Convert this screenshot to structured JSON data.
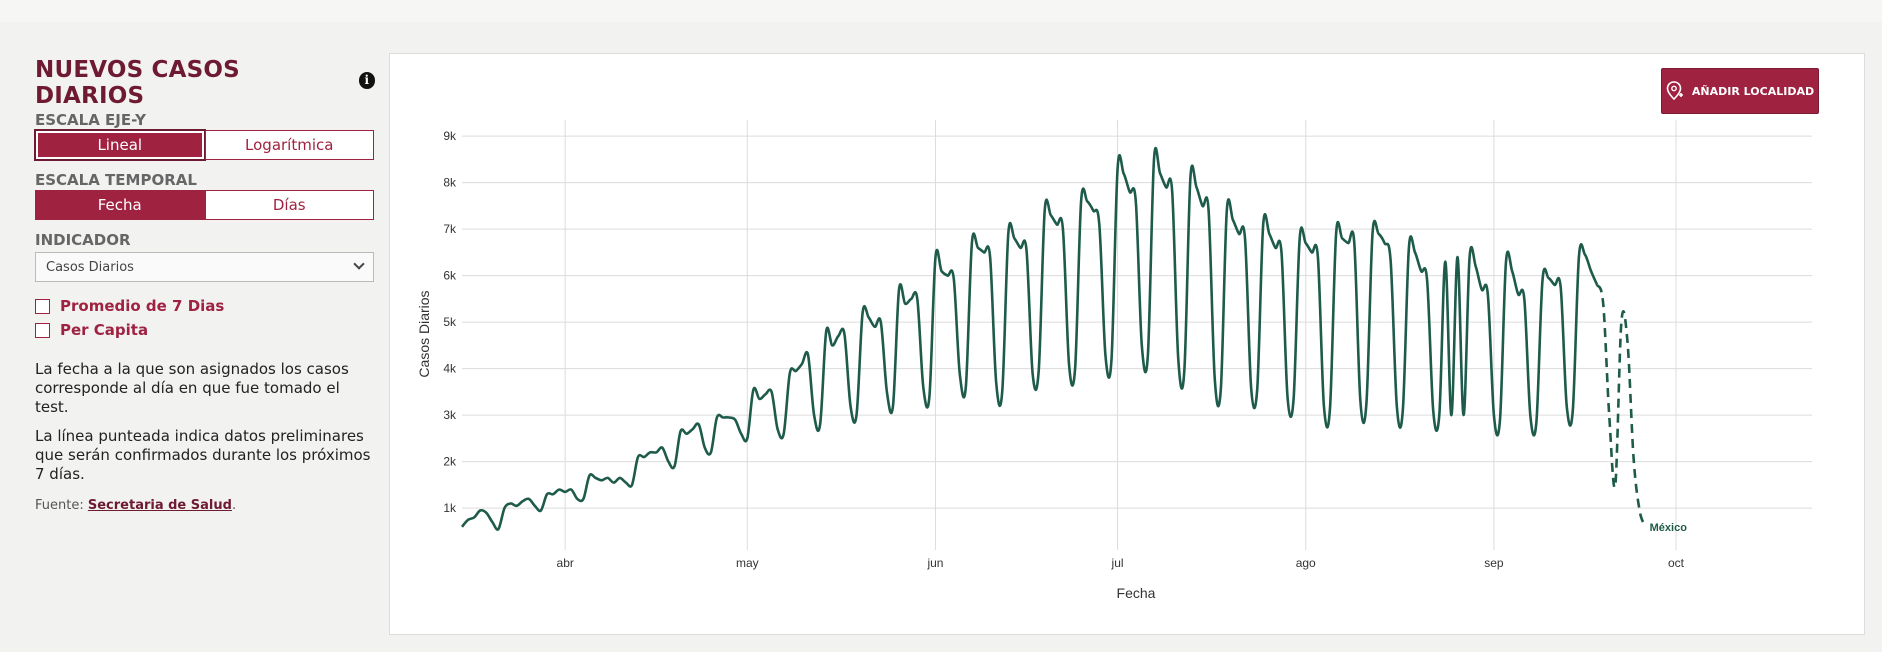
{
  "side": {
    "title": "NUEVOS CASOS DIARIOS",
    "info_icon": "i",
    "yscale_label": "ESCALA EJE-Y",
    "yscale_options": [
      "Lineal",
      "Logarítmica"
    ],
    "yscale_selected": "Lineal",
    "timescale_label": "ESCALA TEMPORAL",
    "timescale_options": [
      "Fecha",
      "Días"
    ],
    "timescale_selected": "Fecha",
    "indicator_label": "INDICADOR",
    "indicator_value": "Casos Diarios",
    "check_avg": "Promedio de 7 Dias",
    "check_capita": "Per Capita",
    "note1": "La fecha a la que son asignados los casos corresponde al día en que fue tomado el test.",
    "note2": "La línea punteada indica datos preliminares que serán confirmados durante los próximos 7 días.",
    "source_prefix": "Fuente: ",
    "source_link": "Secretaria de Salud",
    "source_suffix": "."
  },
  "add_button": {
    "label": "AÑADIR LOCALIDAD",
    "icon": "location-pin-plus-icon"
  },
  "colors": {
    "accent": "#9f2241",
    "title": "#6e1a33",
    "line": "#1e5b4a",
    "grid": "#dcdcdc"
  },
  "chart_data": {
    "type": "line",
    "xlabel": "Fecha",
    "ylabel": "Casos Diarios",
    "x_start": "2020-03-15",
    "x_ticks": [
      "abr",
      "may",
      "jun",
      "jul",
      "ago",
      "sep",
      "oct"
    ],
    "x_tick_dates": [
      "2020-04-01",
      "2020-05-01",
      "2020-06-01",
      "2020-07-01",
      "2020-08-01",
      "2020-09-01",
      "2020-10-01"
    ],
    "y_ticks": [
      1000,
      2000,
      3000,
      4000,
      5000,
      6000,
      7000,
      8000,
      9000
    ],
    "y_tick_labels": [
      "1k",
      "2k",
      "3k",
      "4k",
      "5k",
      "6k",
      "7k",
      "8k",
      "9k"
    ],
    "ylim": [
      0,
      9000
    ],
    "grid": true,
    "series": [
      {
        "name": "México",
        "start_date": "2020-03-15",
        "values": [
          600,
          750,
          800,
          950,
          900,
          700,
          550,
          1000,
          1100,
          1050,
          1150,
          1200,
          1050,
          950,
          1300,
          1300,
          1400,
          1350,
          1400,
          1200,
          1200,
          1700,
          1650,
          1600,
          1650,
          1550,
          1650,
          1550,
          1500,
          2100,
          2100,
          2200,
          2200,
          2300,
          2000,
          1900,
          2650,
          2600,
          2700,
          2800,
          2300,
          2200,
          2950,
          2950,
          2950,
          2900,
          2600,
          2500,
          3550,
          3350,
          3450,
          3500,
          2700,
          2600,
          3900,
          3950,
          4100,
          4300,
          3000,
          2800,
          4800,
          4500,
          4700,
          4750,
          3200,
          3000,
          5200,
          5100,
          4900,
          5000,
          3500,
          3200,
          5700,
          5400,
          5500,
          5500,
          3600,
          3400,
          6400,
          6100,
          6000,
          5950,
          3900,
          3600,
          6700,
          6600,
          6500,
          6400,
          3700,
          3500,
          6900,
          6800,
          6600,
          6550,
          3900,
          3950,
          7400,
          7300,
          7100,
          7000,
          4100,
          4000,
          7600,
          7600,
          7400,
          7100,
          4300,
          4200,
          8300,
          8200,
          7800,
          7600,
          4500,
          4300,
          8500,
          8200,
          7900,
          7800,
          4200,
          3950,
          8100,
          7900,
          7500,
          7400,
          3800,
          3550,
          7400,
          7200,
          6900,
          6800,
          3600,
          3550,
          7100,
          6900,
          6600,
          6500,
          3400,
          3350,
          6800,
          6700,
          6500,
          6400,
          3200,
          3150,
          6900,
          6800,
          6700,
          6700,
          3300,
          3250,
          6900,
          6900,
          6700,
          6300,
          3200,
          3100,
          6600,
          6500,
          6100,
          5900,
          3100,
          3000,
          6300,
          3000,
          6400,
          3000,
          6400,
          6200,
          5700,
          5600,
          3000,
          2900,
          6300,
          6100,
          5600,
          5500,
          3000,
          2850,
          5900,
          5950,
          5800,
          5750,
          3200,
          3100,
          6400,
          6450,
          6100,
          5800
        ],
        "preliminary_values": [
          5800,
          5400,
          3000,
          1500,
          5000,
          4600,
          2100,
          950,
          600
        ]
      }
    ]
  }
}
